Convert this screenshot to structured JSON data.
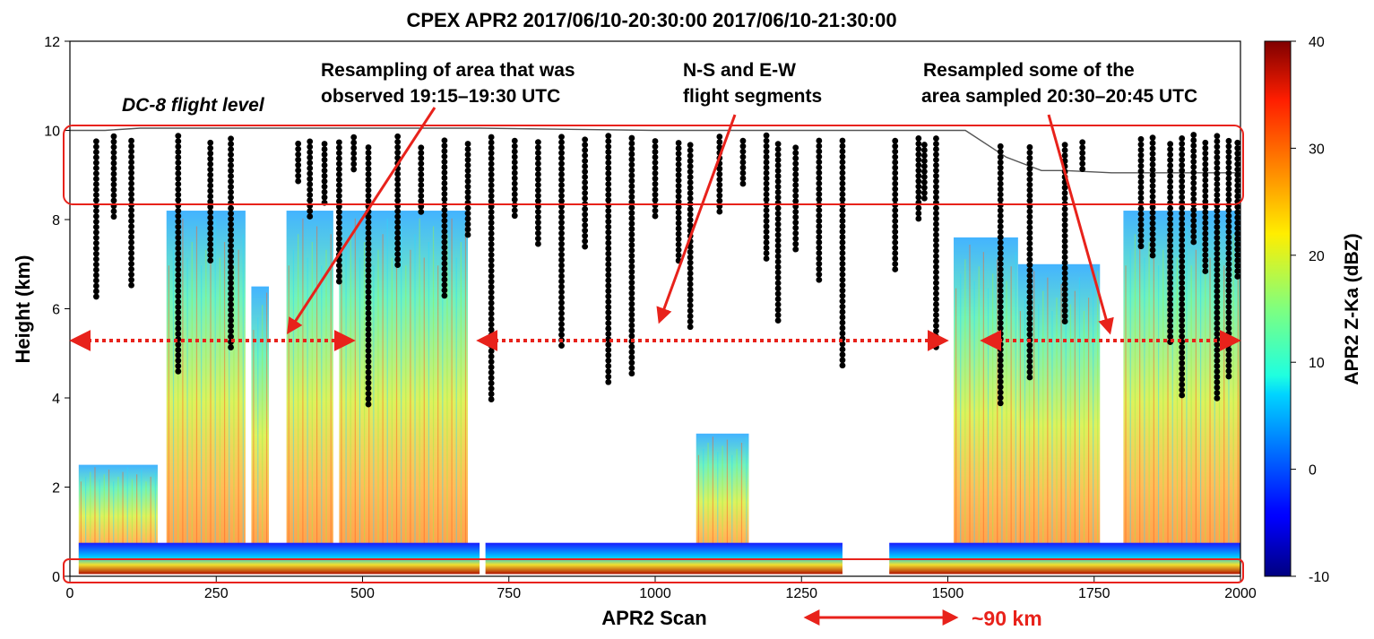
{
  "chart_data": {
    "type": "heatmap",
    "title": "CPEX  APR2  2017/06/10-20:30:00 2017/06/10-21:30:00",
    "xlabel": "APR2 Scan",
    "ylabel": "Height (km)",
    "xlim": [
      0,
      2000
    ],
    "ylim": [
      0,
      12
    ],
    "x_ticks": [
      0,
      250,
      500,
      750,
      1000,
      1250,
      1500,
      1750,
      2000
    ],
    "y_ticks": [
      0,
      2,
      4,
      6,
      8,
      10,
      12
    ],
    "colorbar": {
      "label": "APR2 Z-Ka (dBZ)",
      "range": [
        -10,
        40
      ],
      "ticks": [
        -10,
        0,
        10,
        20,
        30,
        40
      ],
      "colormap": "jet"
    },
    "echo_columns": [
      {
        "x0": 15,
        "x1": 150,
        "top": 2.5
      },
      {
        "x0": 165,
        "x1": 300,
        "top": 8.2
      },
      {
        "x0": 310,
        "x1": 340,
        "top": 6.5
      },
      {
        "x0": 370,
        "x1": 450,
        "top": 8.2
      },
      {
        "x0": 460,
        "x1": 680,
        "top": 8.2
      },
      {
        "x0": 1070,
        "x1": 1160,
        "top": 3.2
      },
      {
        "x0": 1510,
        "x1": 1620,
        "top": 7.6
      },
      {
        "x0": 1620,
        "x1": 1760,
        "top": 7.0
      },
      {
        "x0": 1800,
        "x1": 2000,
        "top": 8.2
      }
    ],
    "flight_level": [
      [
        0,
        10.0
      ],
      [
        60,
        10.0
      ],
      [
        120,
        10.05
      ],
      [
        450,
        10.05
      ],
      [
        700,
        10.05
      ],
      [
        1000,
        10.0
      ],
      [
        1490,
        10.0
      ],
      [
        1530,
        10.0
      ],
      [
        1600,
        9.4
      ],
      [
        1660,
        9.1
      ],
      [
        1700,
        9.1
      ],
      [
        1780,
        9.05
      ],
      [
        2000,
        9.05
      ]
    ],
    "annotations": [
      {
        "text": "DC-8 flight level"
      },
      {
        "lines": [
          "Resampling of area that was",
          "observed 19:15–19:30 UTC"
        ]
      },
      {
        "lines": [
          "N-S and E-W",
          "flight segments"
        ]
      },
      {
        "lines": [
          "Resampled some of the",
          "area sampled 20:30–20:45 UTC"
        ]
      },
      {
        "text": "~90 km"
      }
    ],
    "legend_placement": "none",
    "grid": false
  },
  "colors": {
    "annotation_red": "#e8221b",
    "dots": "#000000"
  }
}
